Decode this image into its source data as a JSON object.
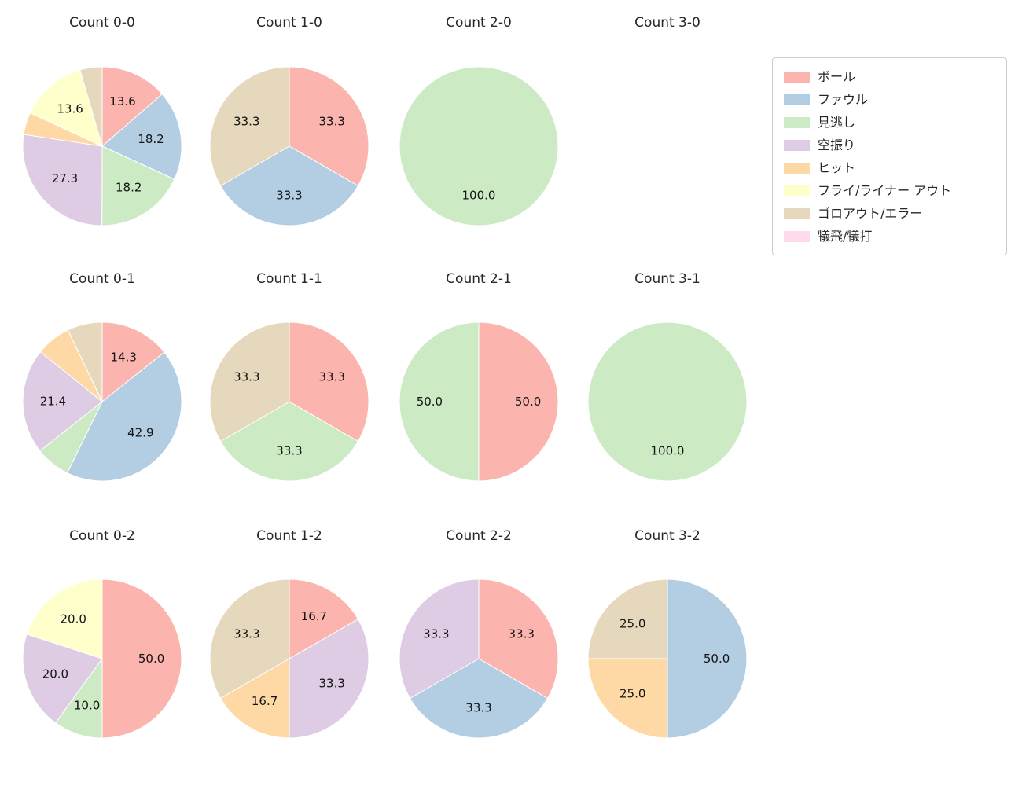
{
  "page": {
    "background": "#ffffff"
  },
  "chart_data": {
    "type": "pie",
    "layout": {
      "grid": "4 columns x 3 rows",
      "columns_cx": [
        130,
        368,
        609,
        849
      ],
      "row_title_cy": [
        29,
        355,
        682
      ],
      "row_pie_cy": [
        186,
        511,
        838
      ],
      "radius": 101,
      "start_angle": 90,
      "clockwise": true,
      "pct_distance": 0.62,
      "legend_position": "top-right"
    },
    "legend": [
      {
        "label": "ボール",
        "color": "#fbb4ae"
      },
      {
        "label": "ファウル",
        "color": "#b3cde3"
      },
      {
        "label": "見逃し",
        "color": "#ccebc5"
      },
      {
        "label": "空振り",
        "color": "#decbe4"
      },
      {
        "label": "ヒット",
        "color": "#fed9a6"
      },
      {
        "label": "フライ/ライナー アウト",
        "color": "#ffffcc"
      },
      {
        "label": "ゴロアウト/エラー",
        "color": "#e5d8bd"
      },
      {
        "label": "犠飛/犠打",
        "color": "#fddaec"
      }
    ],
    "charts": [
      {
        "title": "Count 0-0",
        "col": 0,
        "row": 0,
        "slices": [
          {
            "category": "ボール",
            "value": 13.6,
            "label": "13.6"
          },
          {
            "category": "ファウル",
            "value": 18.2,
            "label": "18.2"
          },
          {
            "category": "見逃し",
            "value": 18.2,
            "label": "18.2"
          },
          {
            "category": "空振り",
            "value": 27.3,
            "label": "27.3"
          },
          {
            "category": "ヒット",
            "value": 4.5,
            "label": null
          },
          {
            "category": "フライ/ライナー アウト",
            "value": 13.6,
            "label": "13.6"
          },
          {
            "category": "ゴロアウト/エラー",
            "value": 4.5,
            "label": null
          }
        ]
      },
      {
        "title": "Count 1-0",
        "col": 1,
        "row": 0,
        "slices": [
          {
            "category": "ボール",
            "value": 33.3,
            "label": "33.3"
          },
          {
            "category": "ファウル",
            "value": 33.3,
            "label": "33.3"
          },
          {
            "category": "ゴロアウト/エラー",
            "value": 33.3,
            "label": "33.3"
          }
        ]
      },
      {
        "title": "Count 2-0",
        "col": 2,
        "row": 0,
        "slices": [
          {
            "category": "見逃し",
            "value": 100.0,
            "label": "100.0"
          }
        ]
      },
      {
        "title": "Count 3-0",
        "col": 3,
        "row": 0,
        "slices": []
      },
      {
        "title": "Count 0-1",
        "col": 0,
        "row": 1,
        "slices": [
          {
            "category": "ボール",
            "value": 14.3,
            "label": "14.3"
          },
          {
            "category": "ファウル",
            "value": 42.9,
            "label": "42.9"
          },
          {
            "category": "見逃し",
            "value": 7.1,
            "label": null
          },
          {
            "category": "空振り",
            "value": 21.4,
            "label": "21.4"
          },
          {
            "category": "ヒット",
            "value": 7.1,
            "label": null
          },
          {
            "category": "ゴロアウト/エラー",
            "value": 7.1,
            "label": null
          }
        ]
      },
      {
        "title": "Count 1-1",
        "col": 1,
        "row": 1,
        "slices": [
          {
            "category": "ボール",
            "value": 33.3,
            "label": "33.3"
          },
          {
            "category": "見逃し",
            "value": 33.3,
            "label": "33.3"
          },
          {
            "category": "ゴロアウト/エラー",
            "value": 33.3,
            "label": "33.3"
          }
        ]
      },
      {
        "title": "Count 2-1",
        "col": 2,
        "row": 1,
        "slices": [
          {
            "category": "ボール",
            "value": 50.0,
            "label": "50.0"
          },
          {
            "category": "見逃し",
            "value": 50.0,
            "label": "50.0"
          }
        ]
      },
      {
        "title": "Count 3-1",
        "col": 3,
        "row": 1,
        "slices": [
          {
            "category": "見逃し",
            "value": 100.0,
            "label": "100.0"
          }
        ]
      },
      {
        "title": "Count 0-2",
        "col": 0,
        "row": 2,
        "slices": [
          {
            "category": "ボール",
            "value": 50.0,
            "label": "50.0"
          },
          {
            "category": "見逃し",
            "value": 10.0,
            "label": "10.0"
          },
          {
            "category": "空振り",
            "value": 20.0,
            "label": "20.0"
          },
          {
            "category": "フライ/ライナー アウト",
            "value": 20.0,
            "label": "20.0"
          }
        ]
      },
      {
        "title": "Count 1-2",
        "col": 1,
        "row": 2,
        "slices": [
          {
            "category": "ボール",
            "value": 16.7,
            "label": "16.7"
          },
          {
            "category": "空振り",
            "value": 33.3,
            "label": "33.3"
          },
          {
            "category": "ヒット",
            "value": 16.7,
            "label": "16.7"
          },
          {
            "category": "ゴロアウト/エラー",
            "value": 33.3,
            "label": "33.3"
          }
        ]
      },
      {
        "title": "Count 2-2",
        "col": 2,
        "row": 2,
        "slices": [
          {
            "category": "ボール",
            "value": 33.3,
            "label": "33.3"
          },
          {
            "category": "ファウル",
            "value": 33.3,
            "label": "33.3"
          },
          {
            "category": "空振り",
            "value": 33.3,
            "label": "33.3"
          }
        ]
      },
      {
        "title": "Count 3-2",
        "col": 3,
        "row": 2,
        "slices": [
          {
            "category": "ファウル",
            "value": 50.0,
            "label": "50.0"
          },
          {
            "category": "ヒット",
            "value": 25.0,
            "label": "25.0"
          },
          {
            "category": "ゴロアウト/エラー",
            "value": 25.0,
            "label": "25.0"
          }
        ]
      }
    ]
  }
}
